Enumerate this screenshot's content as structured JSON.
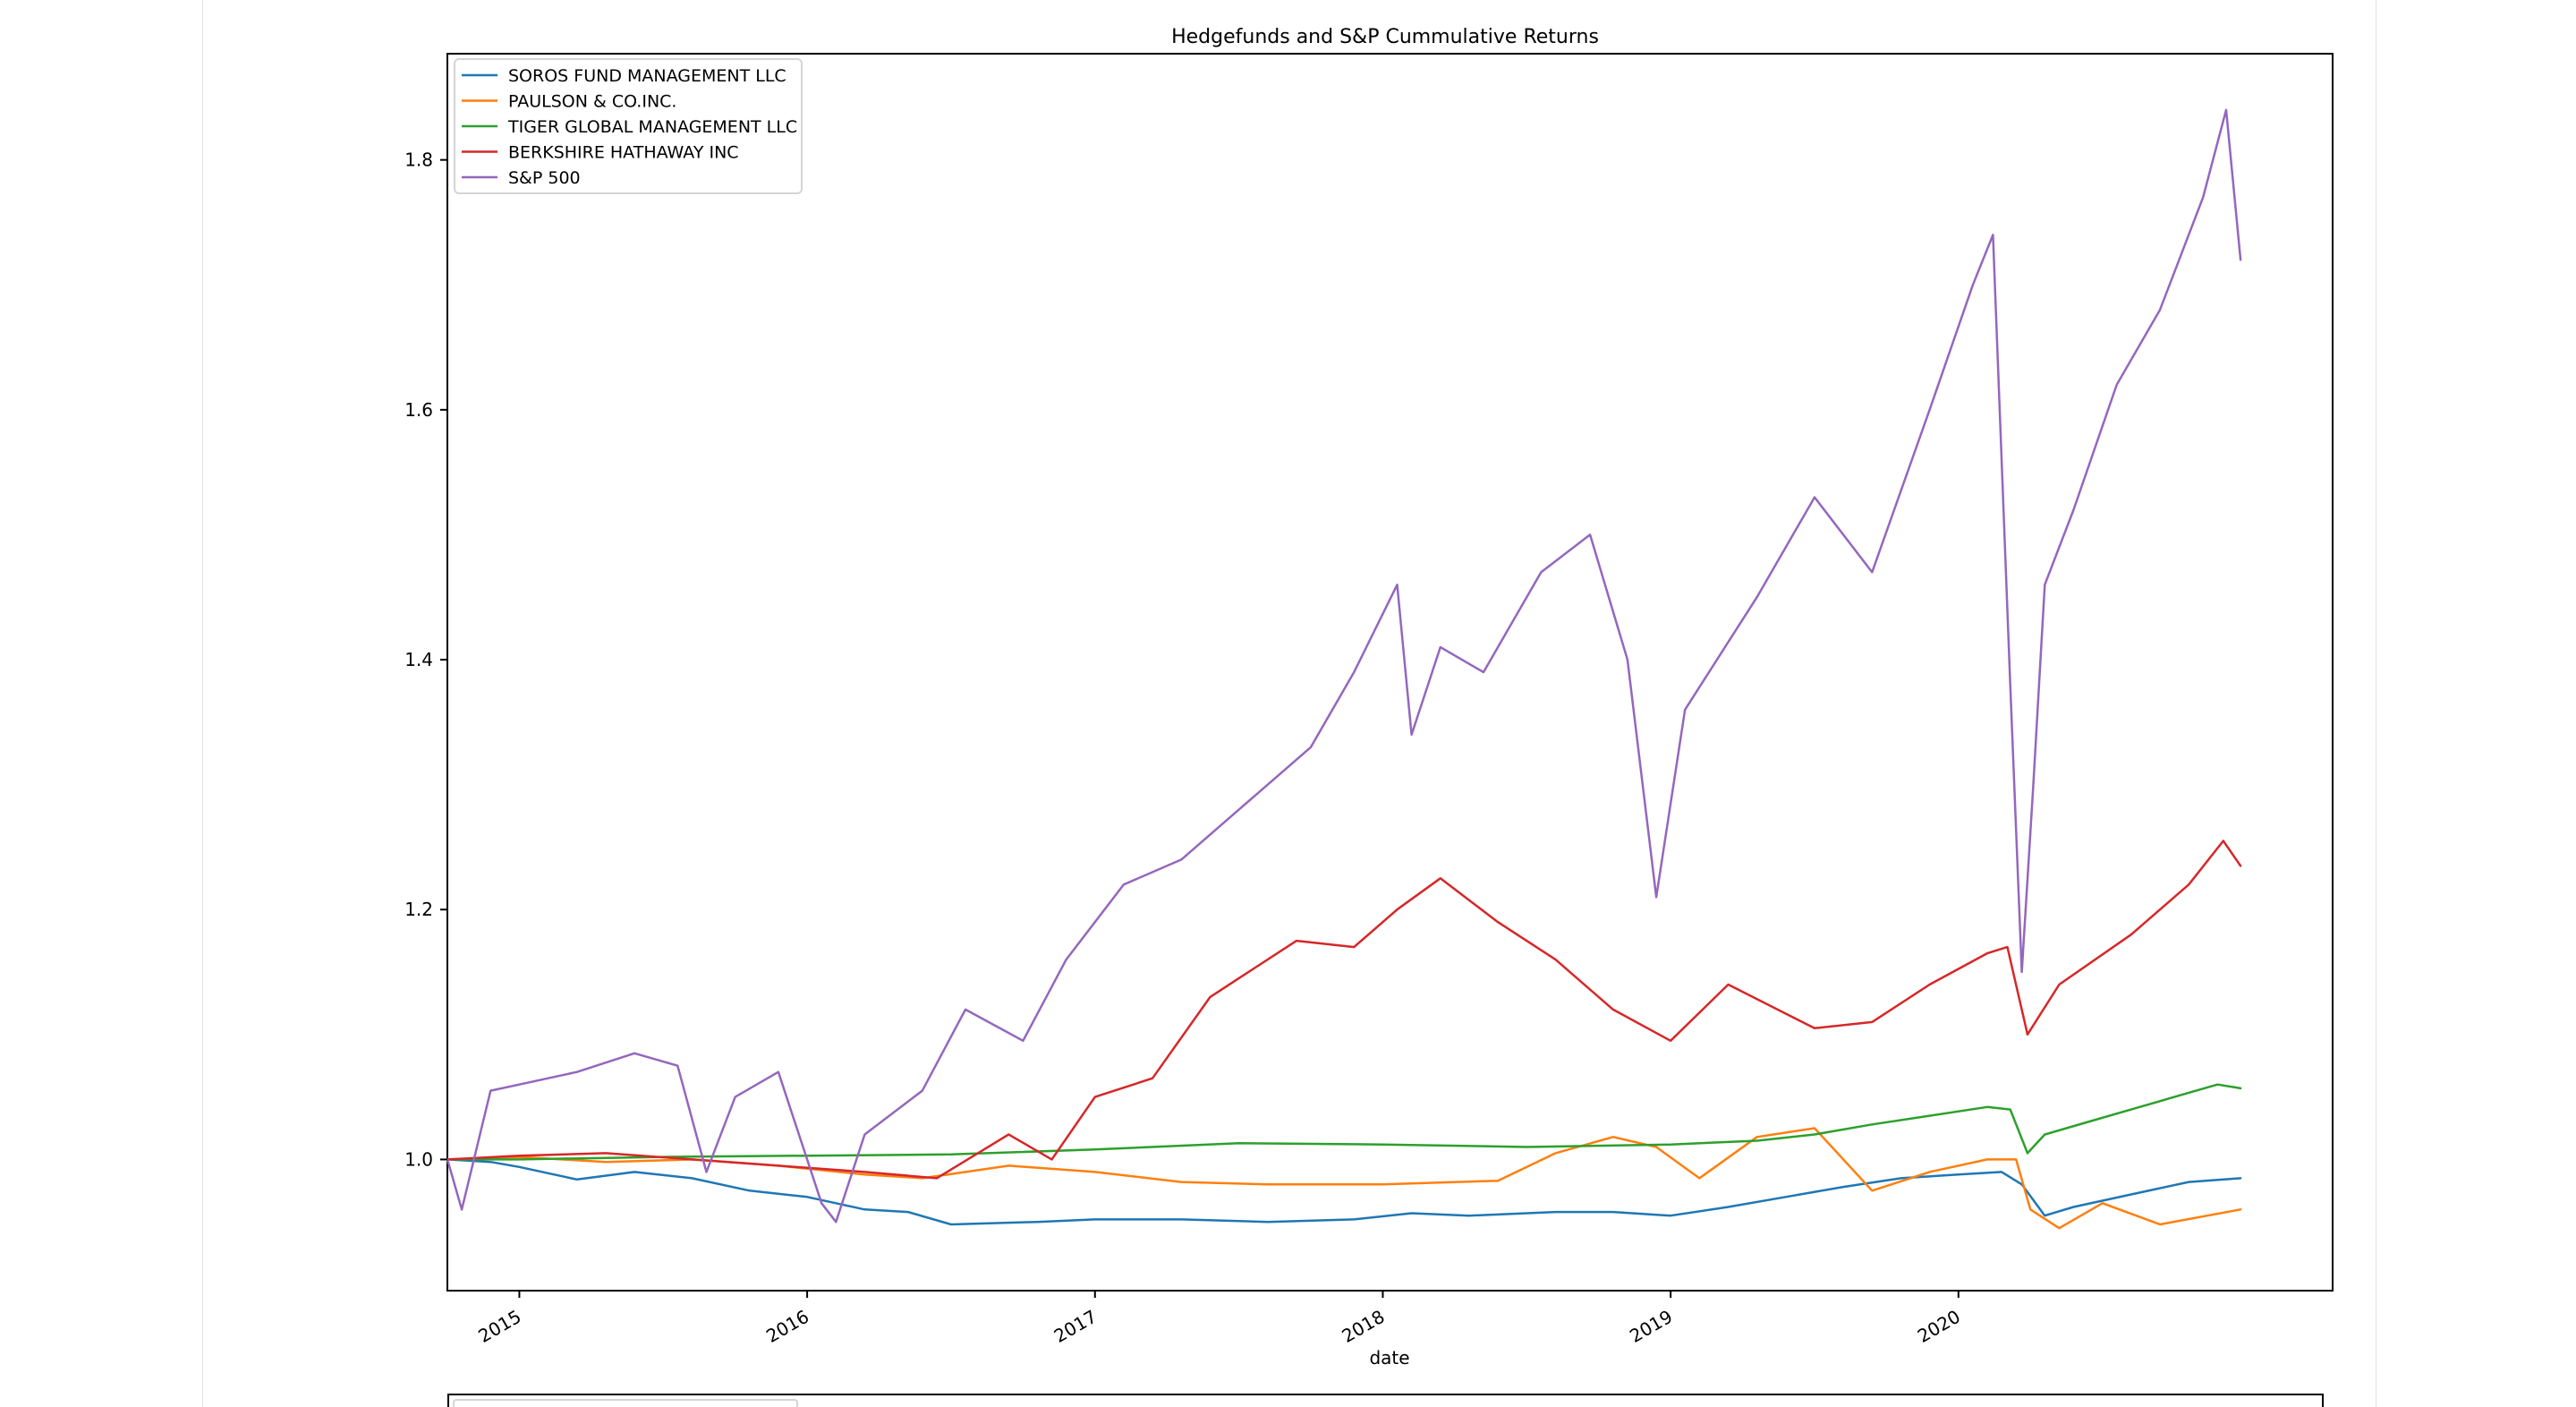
{
  "chart_data": {
    "type": "line",
    "title": "Hedgefunds and S&P Cummulative Returns",
    "xlabel": "date",
    "ylabel": "",
    "x_ticks": [
      "2015",
      "2016",
      "2017",
      "2018",
      "2019",
      "2020"
    ],
    "y_ticks": [
      "1.0",
      "1.2",
      "1.4",
      "1.6",
      "1.8"
    ],
    "xlim": [
      2014.75,
      2021.3
    ],
    "ylim": [
      0.895,
      1.885
    ],
    "grid": false,
    "legend_position": "upper-left",
    "series": [
      {
        "name": "SOROS FUND MANAGEMENT LLC",
        "color": "#1f77b4",
        "x": [
          2014.75,
          2014.9,
          2015.0,
          2015.2,
          2015.4,
          2015.6,
          2015.8,
          2016.0,
          2016.2,
          2016.35,
          2016.5,
          2016.8,
          2017.0,
          2017.3,
          2017.6,
          2017.9,
          2018.1,
          2018.3,
          2018.6,
          2018.8,
          2019.0,
          2019.2,
          2019.4,
          2019.6,
          2019.8,
          2020.0,
          2020.15,
          2020.22,
          2020.3,
          2020.4,
          2020.6,
          2020.8,
          2020.98
        ],
        "y": [
          1.0,
          0.998,
          0.994,
          0.984,
          0.99,
          0.985,
          0.975,
          0.97,
          0.96,
          0.958,
          0.948,
          0.95,
          0.952,
          0.952,
          0.95,
          0.952,
          0.957,
          0.955,
          0.958,
          0.958,
          0.955,
          0.962,
          0.97,
          0.978,
          0.985,
          0.988,
          0.99,
          0.98,
          0.955,
          0.962,
          0.972,
          0.982,
          0.985
        ]
      },
      {
        "name": "PAULSON & CO.INC.",
        "color": "#ff7f0e",
        "x": [
          2014.75,
          2015.0,
          2015.3,
          2015.6,
          2015.9,
          2016.2,
          2016.4,
          2016.7,
          2017.0,
          2017.3,
          2017.6,
          2018.0,
          2018.4,
          2018.6,
          2018.8,
          2018.95,
          2019.1,
          2019.3,
          2019.5,
          2019.7,
          2019.9,
          2020.1,
          2020.2,
          2020.25,
          2020.35,
          2020.5,
          2020.7,
          2020.98
        ],
        "y": [
          1.0,
          1.002,
          0.998,
          1.0,
          0.995,
          0.988,
          0.985,
          0.995,
          0.99,
          0.982,
          0.98,
          0.98,
          0.983,
          1.005,
          1.018,
          1.01,
          0.985,
          1.018,
          1.025,
          0.975,
          0.99,
          1.0,
          1.0,
          0.96,
          0.945,
          0.965,
          0.948,
          0.96
        ]
      },
      {
        "name": "TIGER GLOBAL MANAGEMENT LLC",
        "color": "#2ca02c",
        "x": [
          2014.75,
          2015.0,
          2015.5,
          2016.0,
          2016.5,
          2017.0,
          2017.5,
          2018.0,
          2018.5,
          2019.0,
          2019.3,
          2019.5,
          2019.7,
          2019.9,
          2020.1,
          2020.18,
          2020.24,
          2020.3,
          2020.45,
          2020.6,
          2020.75,
          2020.9,
          2020.98
        ],
        "y": [
          1.0,
          1.0,
          1.002,
          1.003,
          1.004,
          1.008,
          1.013,
          1.012,
          1.01,
          1.012,
          1.015,
          1.02,
          1.028,
          1.035,
          1.042,
          1.04,
          1.005,
          1.02,
          1.03,
          1.04,
          1.05,
          1.06,
          1.057
        ]
      },
      {
        "name": "BERKSHIRE HATHAWAY INC",
        "color": "#d62728",
        "x": [
          2014.75,
          2015.0,
          2015.3,
          2015.6,
          2015.9,
          2016.2,
          2016.45,
          2016.7,
          2016.85,
          2017.0,
          2017.2,
          2017.4,
          2017.7,
          2017.9,
          2018.05,
          2018.2,
          2018.4,
          2018.6,
          2018.8,
          2019.0,
          2019.2,
          2019.5,
          2019.7,
          2019.9,
          2020.1,
          2020.17,
          2020.24,
          2020.35,
          2020.6,
          2020.8,
          2020.92,
          2020.98
        ],
        "y": [
          1.0,
          1.003,
          1.005,
          1.0,
          0.995,
          0.99,
          0.985,
          1.02,
          1.0,
          1.05,
          1.065,
          1.13,
          1.175,
          1.17,
          1.2,
          1.225,
          1.19,
          1.16,
          1.12,
          1.095,
          1.14,
          1.105,
          1.11,
          1.14,
          1.165,
          1.17,
          1.1,
          1.14,
          1.18,
          1.22,
          1.255,
          1.235
        ]
      },
      {
        "name": "S&P 500",
        "color": "#9467bd",
        "x": [
          2014.75,
          2014.8,
          2014.9,
          2015.0,
          2015.2,
          2015.4,
          2015.55,
          2015.65,
          2015.75,
          2015.9,
          2016.05,
          2016.1,
          2016.2,
          2016.4,
          2016.55,
          2016.75,
          2016.9,
          2017.1,
          2017.3,
          2017.5,
          2017.75,
          2017.9,
          2018.05,
          2018.1,
          2018.2,
          2018.35,
          2018.55,
          2018.72,
          2018.85,
          2018.95,
          2019.05,
          2019.3,
          2019.5,
          2019.7,
          2019.9,
          2020.05,
          2020.12,
          2020.18,
          2020.22,
          2020.26,
          2020.3,
          2020.4,
          2020.55,
          2020.7,
          2020.85,
          2020.93,
          2020.98
        ],
        "y": [
          1.0,
          0.96,
          1.055,
          1.06,
          1.07,
          1.085,
          1.075,
          0.99,
          1.05,
          1.07,
          0.965,
          0.95,
          1.02,
          1.055,
          1.12,
          1.095,
          1.16,
          1.22,
          1.24,
          1.28,
          1.33,
          1.39,
          1.46,
          1.34,
          1.41,
          1.39,
          1.47,
          1.5,
          1.4,
          1.21,
          1.36,
          1.45,
          1.53,
          1.47,
          1.6,
          1.7,
          1.74,
          1.38,
          1.15,
          1.3,
          1.46,
          1.52,
          1.62,
          1.68,
          1.77,
          1.84,
          1.72
        ]
      }
    ]
  }
}
